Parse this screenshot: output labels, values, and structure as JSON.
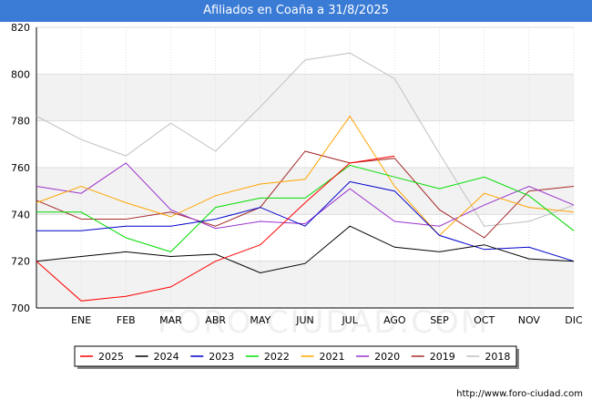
{
  "header": {
    "title": "Afiliados en Coaña a 31/8/2025"
  },
  "footer": {
    "url": "http://www.foro-ciudad.com"
  },
  "watermark": "FORO-CIUDAD.COM",
  "chart_data": {
    "type": "line",
    "title": "Afiliados en Coaña a 31/8/2025",
    "xlabel": "",
    "ylabel": "",
    "categories": [
      "",
      "ENE",
      "FEB",
      "MAR",
      "ABR",
      "MAY",
      "JUN",
      "JUL",
      "AGO",
      "SEP",
      "OCT",
      "NOV",
      "DIC"
    ],
    "ylim": [
      700,
      820
    ],
    "yticks": [
      700,
      720,
      740,
      760,
      780,
      800,
      820
    ],
    "grid": true,
    "legend_position": "bottom",
    "series": [
      {
        "name": "2025",
        "color": "#ff0000",
        "values": [
          720,
          703,
          705,
          709,
          720,
          727,
          745,
          762,
          765,
          null,
          null,
          null,
          null
        ]
      },
      {
        "name": "2024",
        "color": "#000000",
        "values": [
          720,
          722,
          724,
          722,
          723,
          715,
          719,
          735,
          726,
          724,
          727,
          721,
          720
        ]
      },
      {
        "name": "2023",
        "color": "#0000cc",
        "values": [
          733,
          733,
          735,
          735,
          738,
          743,
          735,
          754,
          750,
          731,
          725,
          726,
          720
        ]
      },
      {
        "name": "2022",
        "color": "#00dd00",
        "values": [
          741,
          741,
          730,
          724,
          743,
          747,
          747,
          761,
          756,
          751,
          756,
          748,
          733
        ]
      },
      {
        "name": "2021",
        "color": "#ffa500",
        "values": [
          745,
          752,
          745,
          739,
          748,
          753,
          755,
          782,
          752,
          731,
          749,
          743,
          741
        ]
      },
      {
        "name": "2020",
        "color": "#9932cc",
        "values": [
          752,
          749,
          762,
          742,
          734,
          737,
          736,
          751,
          737,
          735,
          744,
          752,
          744
        ]
      },
      {
        "name": "2019",
        "color": "#a52a2a",
        "values": [
          746,
          738,
          738,
          741,
          735,
          743,
          767,
          762,
          764,
          742,
          730,
          750,
          752
        ]
      },
      {
        "name": "2018",
        "color": "#c0c0c0",
        "values": [
          782,
          772,
          765,
          779,
          767,
          786,
          806,
          809,
          798,
          766,
          735,
          737,
          744
        ]
      }
    ]
  }
}
